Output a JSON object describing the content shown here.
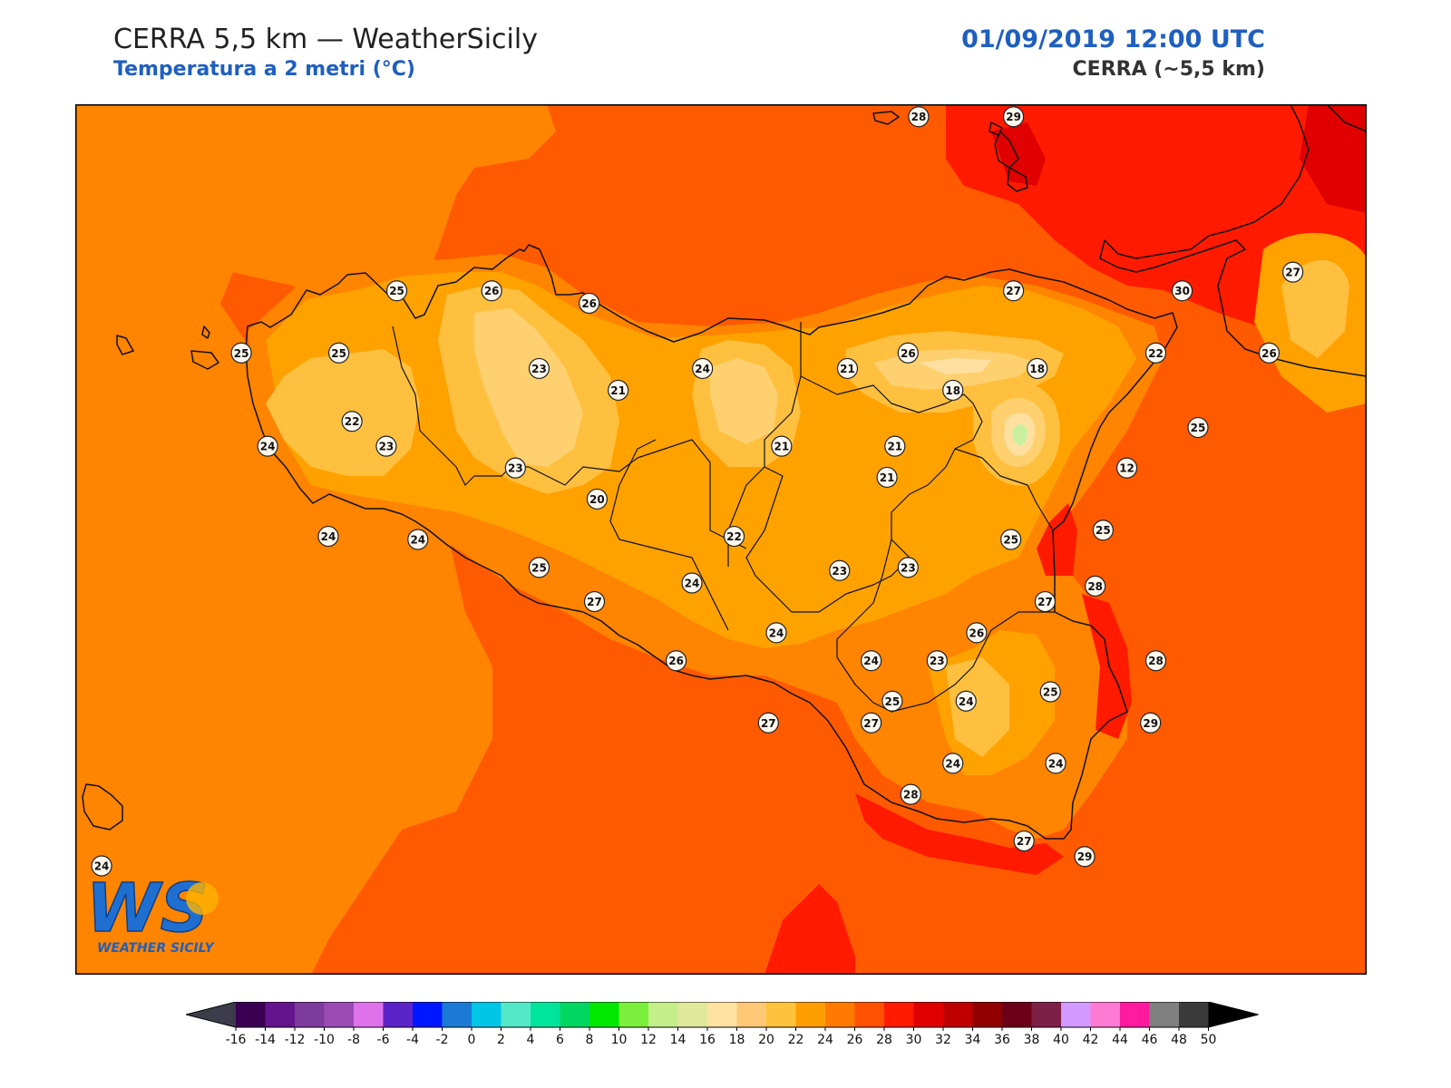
{
  "header": {
    "title": "CERRA 5,5 km — WeatherSicily",
    "subtitle": "Temperatura a 2 metri (°C)",
    "datetime": "01/09/2019 12:00 UTC",
    "model": "CERRA (~5,5 km)"
  },
  "logo": {
    "letters": "WS",
    "text": "WEATHER SICILY"
  },
  "colors": {
    "sea_outer": "#ff8400",
    "sea_main": "#ff5a00",
    "warm_28": "#ff5500",
    "hot_30": "#ff1a00",
    "hot_32": "#e00000",
    "land_24": "#ffa200",
    "land_22": "#ffc040",
    "land_20": "#ffd070",
    "land_18": "#ffe0a0",
    "cold_12": "#c8f0a0"
  },
  "colorbar": {
    "ticks": [
      "-16",
      "-14",
      "-12",
      "-10",
      "-8",
      "-6",
      "-4",
      "-2",
      "0",
      "2",
      "4",
      "6",
      "8",
      "10",
      "12",
      "14",
      "16",
      "18",
      "20",
      "22",
      "24",
      "26",
      "28",
      "30",
      "32",
      "34",
      "36",
      "38",
      "40",
      "42",
      "44",
      "46",
      "48",
      "50"
    ],
    "colors": [
      "#3a0052",
      "#64148c",
      "#7e3b9e",
      "#9a4cb4",
      "#de72ea",
      "#5a24c8",
      "#0018ff",
      "#1a7ad6",
      "#00c6e6",
      "#54e8c8",
      "#00e49c",
      "#00d660",
      "#00e800",
      "#7cee3c",
      "#c4ee8a",
      "#e0e89c",
      "#ffe2a0",
      "#ffc877",
      "#ffc23c",
      "#ff9e00",
      "#ff7a00",
      "#ff5200",
      "#ff1a00",
      "#e00000",
      "#bf0000",
      "#930000",
      "#6c0018",
      "#7c2048",
      "#d29aff",
      "#ff7ad2",
      "#ff1aa0",
      "#808080",
      "#3a3a3a"
    ]
  },
  "stations": [
    {
      "v": "28",
      "lon": 15.1,
      "lat": 38.78
    },
    {
      "v": "29",
      "lon": 15.46,
      "lat": 38.78
    },
    {
      "v": "25",
      "lon": 13.12,
      "lat": 38.22
    },
    {
      "v": "26",
      "lon": 13.48,
      "lat": 38.22
    },
    {
      "v": "26",
      "lon": 13.85,
      "lat": 38.18
    },
    {
      "v": "27",
      "lon": 15.46,
      "lat": 38.22
    },
    {
      "v": "30",
      "lon": 16.1,
      "lat": 38.22
    },
    {
      "v": "27",
      "lon": 16.52,
      "lat": 38.28
    },
    {
      "v": "25",
      "lon": 12.53,
      "lat": 38.02
    },
    {
      "v": "25",
      "lon": 12.9,
      "lat": 38.02
    },
    {
      "v": "23",
      "lon": 13.66,
      "lat": 37.97
    },
    {
      "v": "24",
      "lon": 14.28,
      "lat": 37.97
    },
    {
      "v": "21",
      "lon": 14.83,
      "lat": 37.97
    },
    {
      "v": "26",
      "lon": 15.06,
      "lat": 38.02
    },
    {
      "v": "22",
      "lon": 16.0,
      "lat": 38.02
    },
    {
      "v": "26",
      "lon": 16.43,
      "lat": 38.02
    },
    {
      "v": "18",
      "lon": 15.55,
      "lat": 37.97
    },
    {
      "v": "18",
      "lon": 15.23,
      "lat": 37.9
    },
    {
      "v": "21",
      "lon": 13.96,
      "lat": 37.9
    },
    {
      "v": "22",
      "lon": 12.95,
      "lat": 37.8
    },
    {
      "v": "24",
      "lon": 12.63,
      "lat": 37.72
    },
    {
      "v": "23",
      "lon": 13.08,
      "lat": 37.72
    },
    {
      "v": "21",
      "lon": 14.58,
      "lat": 37.72
    },
    {
      "v": "21",
      "lon": 15.01,
      "lat": 37.72
    },
    {
      "v": "25",
      "lon": 16.16,
      "lat": 37.78
    },
    {
      "v": "23",
      "lon": 13.57,
      "lat": 37.65
    },
    {
      "v": "21",
      "lon": 14.98,
      "lat": 37.62
    },
    {
      "v": "12",
      "lon": 15.89,
      "lat": 37.65
    },
    {
      "v": "20",
      "lon": 13.88,
      "lat": 37.55
    },
    {
      "v": "24",
      "lon": 12.86,
      "lat": 37.43
    },
    {
      "v": "24",
      "lon": 13.2,
      "lat": 37.42
    },
    {
      "v": "22",
      "lon": 14.4,
      "lat": 37.43
    },
    {
      "v": "25",
      "lon": 15.8,
      "lat": 37.45
    },
    {
      "v": "25",
      "lon": 15.45,
      "lat": 37.42
    },
    {
      "v": "25",
      "lon": 13.66,
      "lat": 37.33
    },
    {
      "v": "23",
      "lon": 14.8,
      "lat": 37.32
    },
    {
      "v": "23",
      "lon": 15.06,
      "lat": 37.33
    },
    {
      "v": "24",
      "lon": 14.24,
      "lat": 37.28
    },
    {
      "v": "28",
      "lon": 15.77,
      "lat": 37.27
    },
    {
      "v": "27",
      "lon": 13.87,
      "lat": 37.22
    },
    {
      "v": "27",
      "lon": 15.58,
      "lat": 37.22
    },
    {
      "v": "26",
      "lon": 15.32,
      "lat": 37.12
    },
    {
      "v": "24",
      "lon": 14.56,
      "lat": 37.12
    },
    {
      "v": "26",
      "lon": 14.18,
      "lat": 37.03
    },
    {
      "v": "24",
      "lon": 14.92,
      "lat": 37.03
    },
    {
      "v": "23",
      "lon": 15.17,
      "lat": 37.03
    },
    {
      "v": "28",
      "lon": 16.0,
      "lat": 37.03
    },
    {
      "v": "25",
      "lon": 15.6,
      "lat": 36.93
    },
    {
      "v": "25",
      "lon": 15.0,
      "lat": 36.9
    },
    {
      "v": "24",
      "lon": 15.28,
      "lat": 36.9
    },
    {
      "v": "27",
      "lon": 14.53,
      "lat": 36.83
    },
    {
      "v": "27",
      "lon": 14.92,
      "lat": 36.83
    },
    {
      "v": "29",
      "lon": 15.98,
      "lat": 36.83
    },
    {
      "v": "24",
      "lon": 15.23,
      "lat": 36.7
    },
    {
      "v": "24",
      "lon": 15.62,
      "lat": 36.7
    },
    {
      "v": "28",
      "lon": 15.07,
      "lat": 36.6
    },
    {
      "v": "27",
      "lon": 15.5,
      "lat": 36.45
    },
    {
      "v": "29",
      "lon": 15.73,
      "lat": 36.4
    },
    {
      "v": "24",
      "lon": 12.0,
      "lat": 36.37
    }
  ]
}
